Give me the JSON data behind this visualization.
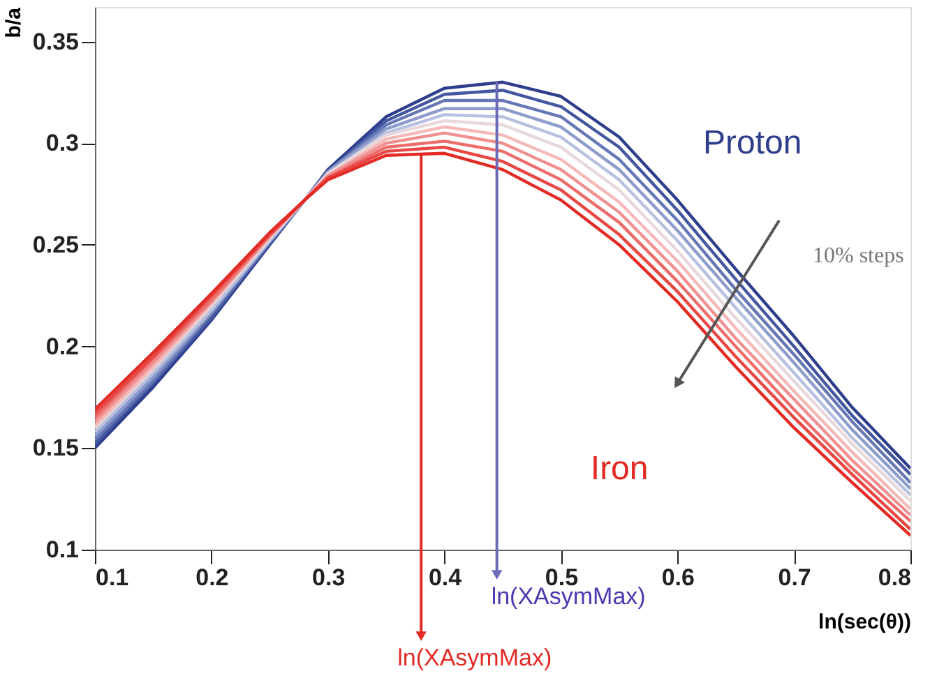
{
  "chart_data": {
    "type": "line",
    "xlabel": "ln(sec(θ))",
    "ylabel": "b/a",
    "x": [
      0.1,
      0.15,
      0.2,
      0.25,
      0.28,
      0.3,
      0.35,
      0.4,
      0.45,
      0.5,
      0.55,
      0.6,
      0.65,
      0.7,
      0.75,
      0.8
    ],
    "xlim": [
      0.1,
      0.8
    ],
    "xticks": [
      0.1,
      0.2,
      0.3,
      0.4,
      0.5,
      0.6,
      0.7,
      0.8
    ],
    "ylim": [
      0.1,
      0.367
    ],
    "yticks": [
      0.1,
      0.15,
      0.2,
      0.25,
      0.3,
      0.35
    ],
    "grid": false,
    "marker": "none",
    "line_style": "solid",
    "series": [
      {
        "name": "Proton",
        "color": "#2e3d8c",
        "values": [
          0.15,
          0.18,
          0.213,
          0.25,
          0.272,
          0.287,
          0.313,
          0.327,
          0.33,
          0.323,
          0.303,
          0.272,
          0.238,
          0.205,
          0.17,
          0.14
        ]
      },
      {
        "color": "#4457a0",
        "values": [
          0.152,
          0.182,
          0.214,
          0.251,
          0.272,
          0.286,
          0.311,
          0.324,
          0.326,
          0.318,
          0.298,
          0.267,
          0.233,
          0.2,
          0.166,
          0.137
        ]
      },
      {
        "color": "#6677b5",
        "values": [
          0.154,
          0.183,
          0.216,
          0.251,
          0.272,
          0.286,
          0.309,
          0.321,
          0.321,
          0.313,
          0.292,
          0.262,
          0.228,
          0.196,
          0.163,
          0.133
        ]
      },
      {
        "color": "#8e9ccc",
        "values": [
          0.156,
          0.185,
          0.217,
          0.252,
          0.272,
          0.286,
          0.307,
          0.317,
          0.317,
          0.308,
          0.287,
          0.257,
          0.224,
          0.192,
          0.159,
          0.13
        ]
      },
      {
        "color": "#b8c0e0",
        "values": [
          0.158,
          0.187,
          0.218,
          0.252,
          0.272,
          0.285,
          0.305,
          0.314,
          0.313,
          0.303,
          0.282,
          0.252,
          0.219,
          0.187,
          0.155,
          0.127
        ]
      },
      {
        "color": "#e8d8dc",
        "values": [
          0.16,
          0.189,
          0.22,
          0.253,
          0.272,
          0.285,
          0.304,
          0.311,
          0.309,
          0.298,
          0.277,
          0.247,
          0.214,
          0.183,
          0.152,
          0.124
        ]
      },
      {
        "color": "#f4b8b8",
        "values": [
          0.161,
          0.19,
          0.221,
          0.254,
          0.272,
          0.284,
          0.302,
          0.308,
          0.304,
          0.292,
          0.271,
          0.242,
          0.209,
          0.178,
          0.148,
          0.12
        ]
      },
      {
        "color": "#f09090",
        "values": [
          0.163,
          0.192,
          0.222,
          0.254,
          0.272,
          0.284,
          0.3,
          0.305,
          0.3,
          0.287,
          0.266,
          0.237,
          0.204,
          0.174,
          0.144,
          0.117
        ]
      },
      {
        "color": "#ec6c6a",
        "values": [
          0.165,
          0.194,
          0.223,
          0.255,
          0.272,
          0.283,
          0.298,
          0.301,
          0.296,
          0.282,
          0.261,
          0.232,
          0.2,
          0.169,
          0.14,
          0.114
        ]
      },
      {
        "color": "#e84844",
        "values": [
          0.167,
          0.195,
          0.225,
          0.255,
          0.272,
          0.283,
          0.296,
          0.298,
          0.291,
          0.277,
          0.255,
          0.227,
          0.195,
          0.165,
          0.137,
          0.11
        ]
      },
      {
        "name": "Iron",
        "color": "#e32b26",
        "values": [
          0.169,
          0.197,
          0.226,
          0.256,
          0.272,
          0.282,
          0.294,
          0.295,
          0.287,
          0.272,
          0.25,
          0.222,
          0.19,
          0.16,
          0.133,
          0.107
        ]
      }
    ],
    "annotations": [
      "10% steps",
      {
        "text": "ln(XAsymMax)",
        "x": 0.38,
        "y": 0.295
      },
      {
        "text": "ln(XAsymMax)",
        "x": 0.445,
        "y": 0.33
      }
    ]
  }
}
